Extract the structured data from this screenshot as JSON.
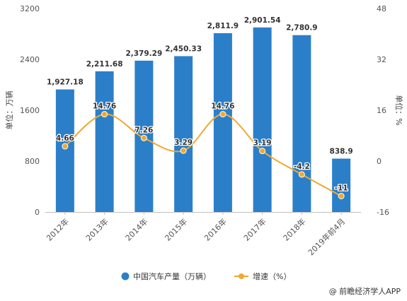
{
  "chart_data": {
    "type": "bar+line",
    "categories": [
      "2012年",
      "2013年",
      "2014年",
      "2015年",
      "2016年",
      "2017年",
      "2018年",
      "2019年前4月"
    ],
    "series": [
      {
        "name": "中国汽车产量（万辆）",
        "type": "bar",
        "axis": "left",
        "color": "#2b7fc9",
        "values": [
          1927.18,
          2211.68,
          2379.29,
          2450.33,
          2811.9,
          2901.54,
          2780.9,
          838.9
        ],
        "labels": [
          "1,927.18",
          "2,211.68",
          "2,379.29",
          "2,450.33",
          "2,811.9",
          "2,901.54",
          "2,780.9",
          "838.9"
        ]
      },
      {
        "name": "增速（%）",
        "type": "line",
        "axis": "right",
        "color": "#f0a830",
        "values": [
          4.66,
          14.76,
          7.26,
          3.29,
          14.76,
          3.19,
          -4.2,
          -11
        ],
        "labels": [
          "4.66",
          "14.76",
          "7.26",
          "3.29",
          "14.76",
          "3.19",
          "-4.2",
          "-11"
        ]
      }
    ],
    "ylabel_left": "单位：万辆",
    "ylabel_right": "单位：%",
    "ylim_left": [
      0,
      3200
    ],
    "yticks_left": [
      "0",
      "800",
      "1600",
      "2400",
      "3200"
    ],
    "ylim_right": [
      -16,
      48
    ],
    "yticks_right": [
      "-16",
      "0",
      "16",
      "32",
      "48"
    ],
    "legend_position": "bottom",
    "grid": false
  },
  "credit": "@ 前瞻经济学人APP"
}
